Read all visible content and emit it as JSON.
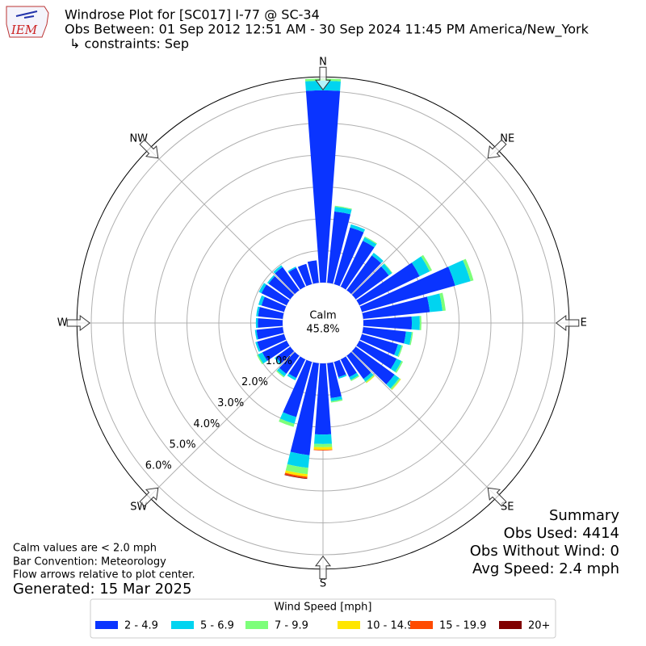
{
  "chart_data": {
    "type": "windrose",
    "logo_text": "IEM",
    "title": "Windrose Plot for [SC017] I-77 @ SC-34",
    "subtitle": "Obs Between: 01 Sep 2012 12:51 AM - 30 Sep 2024 11:45 PM America/New_York",
    "constraints": "↳ constraints: Sep",
    "calm_label": "Calm",
    "calm_text": "45.8%",
    "x": [
      0,
      10,
      20,
      30,
      40,
      50,
      60,
      70,
      80,
      90,
      100,
      110,
      120,
      130,
      140,
      150,
      160,
      170,
      180,
      190,
      200,
      210,
      220,
      230,
      240,
      250,
      260,
      270,
      280,
      290,
      300,
      310,
      320,
      330,
      340,
      350
    ],
    "xticks": [
      {
        "value": 0,
        "label": "N"
      },
      {
        "value": 45,
        "label": "NE"
      },
      {
        "value": 90,
        "label": "E"
      },
      {
        "value": 135,
        "label": "SE"
      },
      {
        "value": 180,
        "label": "S"
      },
      {
        "value": 225,
        "label": "SW"
      },
      {
        "value": 270,
        "label": "W"
      },
      {
        "value": 315,
        "label": "NW"
      }
    ],
    "ylim": [
      0,
      6.45
    ],
    "yticks": [
      {
        "value": 0,
        "label": "0.0%"
      },
      {
        "value": 1,
        "label": "1.0%"
      },
      {
        "value": 2,
        "label": "2.0%"
      },
      {
        "value": 3,
        "label": "3.0%"
      },
      {
        "value": 4,
        "label": "4.0%"
      },
      {
        "value": 5,
        "label": "5.0%"
      },
      {
        "value": 6,
        "label": "6.0%"
      }
    ],
    "grid": true,
    "legend_title": "Wind Speed [mph]",
    "series": [
      {
        "name": "2 - 4.9",
        "color": "#0a34ff",
        "values": [
          6.03,
          2.25,
          1.85,
          1.6,
          1.35,
          1.28,
          2.1,
          3.04,
          2.1,
          1.52,
          1.35,
          1.18,
          1.3,
          1.5,
          0.9,
          0.62,
          0.5,
          1.1,
          2.23,
          2.9,
          1.8,
          0.65,
          0.7,
          0.55,
          0.85,
          0.88,
          0.83,
          0.78,
          0.78,
          0.74,
          0.88,
          0.84,
          0.9,
          0.66,
          0.66,
          0.71
        ]
      },
      {
        "name": "5 - 6.9",
        "color": "#00d4f0",
        "values": [
          0.3,
          0.15,
          0.1,
          0.12,
          0.1,
          0.12,
          0.35,
          0.5,
          0.4,
          0.25,
          0.18,
          0.12,
          0.17,
          0.18,
          0.1,
          0.1,
          0.05,
          0.1,
          0.3,
          0.4,
          0.22,
          0.08,
          0.1,
          0.06,
          0.15,
          0.06,
          0.05,
          0.06,
          0.06,
          0.1,
          0.09,
          0.05,
          0.07,
          0.04,
          0,
          0
        ]
      },
      {
        "name": "7 - 9.9",
        "color": "#7dff7a",
        "values": [
          0.07,
          0.03,
          0,
          0.03,
          0,
          0.02,
          0.08,
          0.1,
          0.1,
          0.05,
          0.04,
          0.04,
          0.05,
          0.05,
          0.04,
          0.04,
          0,
          0.04,
          0.1,
          0.2,
          0.1,
          0,
          0.04,
          0,
          0.04,
          0,
          0,
          0,
          0,
          0,
          0,
          0,
          0,
          0,
          0,
          0
        ]
      },
      {
        "name": "10 - 14.9",
        "color": "#ffe600",
        "values": [
          0,
          0,
          0,
          0,
          0,
          0,
          0,
          0,
          0,
          0,
          0,
          0,
          0,
          0.02,
          0.02,
          0,
          0,
          0,
          0.08,
          0.08,
          0,
          0,
          0,
          0,
          0,
          0,
          0,
          0,
          0,
          0,
          0,
          0,
          0,
          0,
          0,
          0
        ]
      },
      {
        "name": "15 - 19.9",
        "color": "#ff4a00",
        "values": [
          0,
          0,
          0,
          0,
          0,
          0,
          0,
          0,
          0,
          0,
          0,
          0,
          0,
          0,
          0,
          0,
          0,
          0,
          0.02,
          0.05,
          0,
          0,
          0,
          0,
          0,
          0,
          0,
          0,
          0,
          0,
          0,
          0,
          0,
          0,
          0,
          0
        ]
      },
      {
        "name": "20+",
        "color": "#800000",
        "values": [
          0,
          0,
          0,
          0,
          0,
          0,
          0,
          0,
          0,
          0,
          0,
          0,
          0,
          0,
          0,
          0,
          0,
          0,
          0,
          0.02,
          0,
          0,
          0,
          0,
          0,
          0,
          0,
          0,
          0,
          0,
          0,
          0,
          0,
          0,
          0,
          0
        ]
      }
    ],
    "notes": [
      "Calm values are < 2.0 mph",
      "Bar Convention: Meteorology",
      "Flow arrows relative to plot center."
    ],
    "generated": "Generated: 15 Mar 2025",
    "summary": [
      "Summary",
      "Obs Used: 4414",
      "Obs Without Wind: 0",
      "Avg Speed: 2.4 mph"
    ]
  }
}
